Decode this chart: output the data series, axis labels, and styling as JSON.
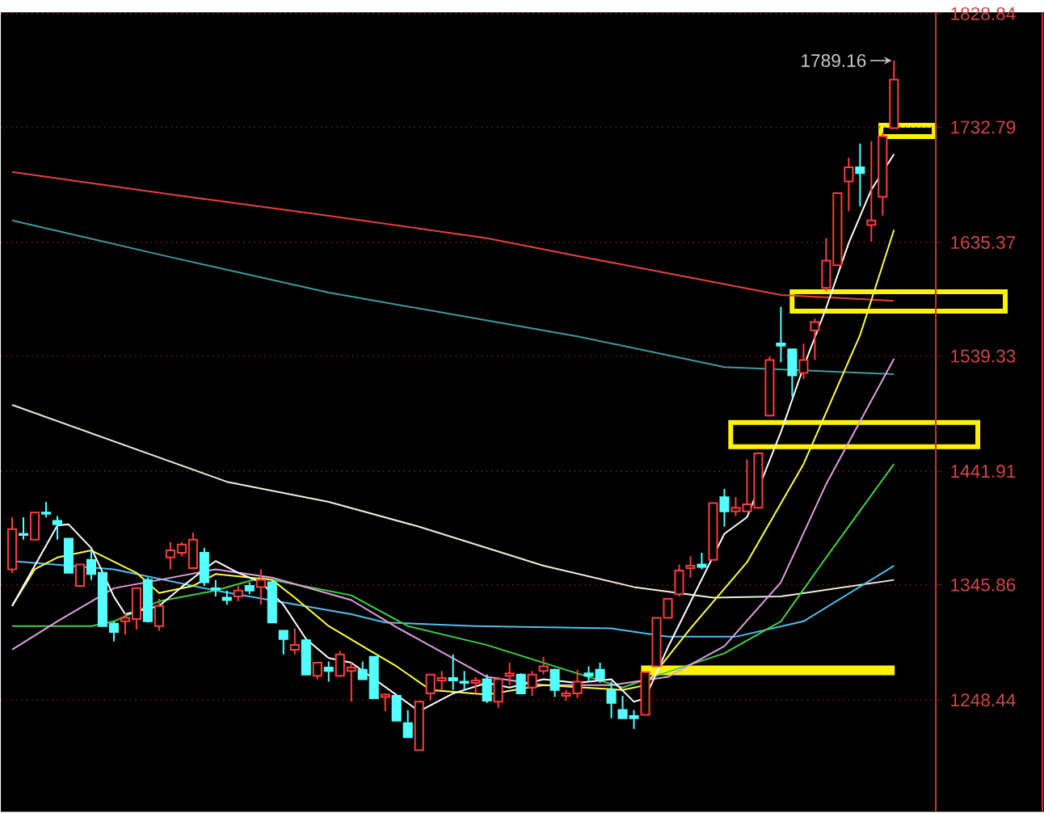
{
  "chart_data": {
    "type": "candlestick",
    "categories": [
      null,
      null,
      null,
      null,
      null,
      null,
      null,
      null,
      null,
      null,
      null,
      null,
      null,
      null,
      null,
      null,
      null,
      null,
      null,
      null,
      null,
      null,
      null,
      null,
      null,
      null,
      null,
      null,
      null,
      null,
      null,
      null,
      null,
      null,
      null,
      null,
      null,
      null,
      null,
      null,
      null,
      null,
      null,
      null,
      null,
      null,
      null,
      null,
      null,
      null,
      null,
      null,
      null,
      null,
      null,
      null,
      null,
      null,
      null,
      null,
      null,
      null,
      null,
      null,
      null,
      null,
      null,
      null,
      null,
      null,
      null,
      null,
      null,
      null,
      null,
      null,
      null,
      null,
      null
    ],
    "ohlc": [
      [
        1359,
        1403,
        1356,
        1393
      ],
      [
        1389,
        1403,
        1384,
        1388
      ],
      [
        1384,
        1407,
        1384,
        1407
      ],
      [
        1407,
        1416,
        1403,
        1406
      ],
      [
        1400,
        1404,
        1384,
        1397
      ],
      [
        1385,
        1385,
        1356,
        1356
      ],
      [
        1345,
        1363,
        1345,
        1363
      ],
      [
        1367,
        1375,
        1350,
        1355
      ],
      [
        1356,
        1356,
        1311,
        1311
      ],
      [
        1313,
        1315,
        1298,
        1306
      ],
      [
        1315,
        1322,
        1304,
        1318
      ],
      [
        1317,
        1343,
        1308,
        1343
      ],
      [
        1350,
        1352,
        1314,
        1315
      ],
      [
        1311,
        1334,
        1307,
        1328
      ],
      [
        1369,
        1382,
        1359,
        1375
      ],
      [
        1373,
        1382,
        1370,
        1380
      ],
      [
        1360,
        1390,
        1359,
        1384
      ],
      [
        1373,
        1377,
        1345,
        1348
      ],
      [
        1343,
        1350,
        1336,
        1342
      ],
      [
        1335,
        1341,
        1329,
        1333
      ],
      [
        1336,
        1345,
        1332,
        1341
      ],
      [
        1345,
        1348,
        1338,
        1341
      ],
      [
        1344,
        1359,
        1329,
        1350
      ],
      [
        1348,
        1350,
        1314,
        1314
      ],
      [
        1307,
        1307,
        1287,
        1300
      ],
      [
        1291,
        1309,
        1287,
        1295
      ],
      [
        1299,
        1299,
        1270,
        1270
      ],
      [
        1269,
        1280,
        1266,
        1280
      ],
      [
        1276,
        1281,
        1264,
        1273
      ],
      [
        1269,
        1290,
        1268,
        1287
      ],
      [
        1273,
        1280,
        1247,
        1276
      ],
      [
        1274,
        1281,
        1266,
        1266
      ],
      [
        1285,
        1285,
        1250,
        1250
      ],
      [
        1251,
        1254,
        1239,
        1253
      ],
      [
        1252,
        1252,
        1231,
        1231
      ],
      [
        1229,
        1240,
        1217,
        1217
      ],
      [
        1206,
        1247,
        1206,
        1247
      ],
      [
        1254,
        1270,
        1248,
        1270
      ],
      [
        1265,
        1273,
        1257,
        1267
      ],
      [
        1267,
        1287,
        1257,
        1265
      ],
      [
        1264,
        1273,
        1257,
        1263
      ],
      [
        1263,
        1268,
        1254,
        1265
      ],
      [
        1266,
        1270,
        1246,
        1248
      ],
      [
        1247,
        1268,
        1242,
        1266
      ],
      [
        1269,
        1280,
        1261,
        1271
      ],
      [
        1270,
        1271,
        1254,
        1254
      ],
      [
        1259,
        1273,
        1252,
        1270
      ],
      [
        1273,
        1285,
        1270,
        1277
      ],
      [
        1274,
        1275,
        1251,
        1257
      ],
      [
        1252,
        1257,
        1248,
        1254
      ],
      [
        1254,
        1274,
        1250,
        1264
      ],
      [
        1271,
        1277,
        1264,
        1269
      ],
      [
        1274,
        1280,
        1263,
        1266
      ],
      [
        1257,
        1264,
        1233,
        1246
      ],
      [
        1240,
        1252,
        1233,
        1233
      ],
      [
        1235,
        1240,
        1224,
        1233
      ],
      [
        1236,
        1272,
        1236,
        1272
      ],
      [
        1277,
        1318,
        1277,
        1318
      ],
      [
        1318,
        1334,
        1318,
        1334
      ],
      [
        1338,
        1363,
        1336,
        1358
      ],
      [
        1360,
        1370,
        1352,
        1362
      ],
      [
        1363,
        1373,
        1359,
        1361
      ],
      [
        1367,
        1415,
        1367,
        1415
      ],
      [
        1420,
        1427,
        1395,
        1408
      ],
      [
        1408,
        1420,
        1404,
        1411
      ],
      [
        1408,
        1452,
        1408,
        1414
      ],
      [
        1411,
        1457,
        1411,
        1457
      ],
      [
        1489,
        1539,
        1489,
        1536
      ],
      [
        1550,
        1581,
        1534,
        1548
      ],
      [
        1545,
        1545,
        1505,
        1523
      ],
      [
        1525,
        1550,
        1520,
        1536
      ],
      [
        1561,
        1571,
        1536,
        1568
      ],
      [
        1597,
        1639,
        1594,
        1620
      ],
      [
        1616,
        1677,
        1616,
        1677
      ],
      [
        1687,
        1707,
        1662,
        1699
      ],
      [
        1699,
        1719,
        1666,
        1694
      ],
      [
        1650,
        1721,
        1636,
        1654
      ],
      [
        1674,
        1728,
        1658,
        1725
      ],
      [
        1732,
        1789.16,
        1732,
        1773
      ]
    ],
    "colors": [
      "#ff3c3c",
      "#54ffff",
      "#ff3c3c",
      "#54ffff",
      "#54ffff",
      "#54ffff",
      "#ff3c3c",
      "#54ffff",
      "#54ffff",
      "#54ffff",
      "#ff3c3c",
      "#ff3c3c",
      "#54ffff",
      "#ff3c3c",
      "#ff3c3c",
      "#ff3c3c",
      "#ff3c3c",
      "#54ffff",
      "#54ffff",
      "#54ffff",
      "#ff3c3c",
      "#54ffff",
      "#ff3c3c",
      "#54ffff",
      "#54ffff",
      "#ff3c3c",
      "#54ffff",
      "#ff3c3c",
      "#54ffff",
      "#ff3c3c",
      "#ff3c3c",
      "#54ffff",
      "#54ffff",
      "#ff3c3c",
      "#54ffff",
      "#54ffff",
      "#ff3c3c",
      "#ff3c3c",
      "#ff3c3c",
      "#54ffff",
      "#54ffff",
      "#ff3c3c",
      "#54ffff",
      "#ff3c3c",
      "#ff3c3c",
      "#54ffff",
      "#ff3c3c",
      "#ff3c3c",
      "#54ffff",
      "#ff3c3c",
      "#ff3c3c",
      "#54ffff",
      "#54ffff",
      "#54ffff",
      "#54ffff",
      "#54ffff",
      "#ff3c3c",
      "#ff3c3c",
      "#ff3c3c",
      "#ff3c3c",
      "#ff3c3c",
      "#54ffff",
      "#ff3c3c",
      "#54ffff",
      "#ff3c3c",
      "#ff3c3c",
      "#ff3c3c",
      "#ff3c3c",
      "#54ffff",
      "#54ffff",
      "#ff3c3c",
      "#ff3c3c",
      "#ff3c3c",
      "#ff3c3c",
      "#ff3c3c",
      "#54ffff",
      "#ff3c3c",
      "#ff3c3c",
      "#ff3c3c"
    ],
    "series": [
      {
        "type": "line",
        "color": "#e84040",
        "values": [
          1695,
          null,
          null,
          null,
          null,
          null,
          null,
          null,
          null,
          null,
          null,
          null,
          null,
          null,
          1676,
          null,
          null,
          null,
          null,
          null,
          null,
          null,
          null,
          null,
          null,
          null,
          null,
          null,
          1658,
          null,
          null,
          null,
          null,
          null,
          null,
          null,
          null,
          null,
          null,
          null,
          null,
          null,
          1639,
          null,
          null,
          null,
          null,
          null,
          null,
          null,
          1624,
          null,
          null,
          null,
          null,
          null,
          1613,
          null,
          null,
          null,
          null,
          null,
          null,
          null,
          null,
          null,
          null,
          null,
          1591,
          null,
          null,
          null,
          null,
          null,
          null,
          null,
          null,
          null,
          1586
        ]
      },
      {
        "type": "line",
        "color": "#3f9aa0",
        "values": [
          1654,
          null,
          null,
          null,
          null,
          null,
          null,
          null,
          null,
          null,
          null,
          null,
          null,
          null,
          1623,
          null,
          null,
          null,
          null,
          null,
          null,
          null,
          null,
          null,
          null,
          null,
          null,
          null,
          1593,
          null,
          null,
          null,
          null,
          null,
          null,
          null,
          null,
          null,
          null,
          null,
          null,
          null,
          null,
          null,
          null,
          null,
          null,
          null,
          null,
          null,
          1556,
          null,
          null,
          null,
          null,
          null,
          null,
          null,
          null,
          null,
          null,
          null,
          null,
          1530,
          null,
          null,
          null,
          null,
          null,
          null,
          null,
          null,
          null,
          null,
          null,
          null,
          null,
          null,
          1524
        ]
      },
      {
        "type": "line",
        "color": "#f0f0d8",
        "values": [
          1498,
          null,
          null,
          null,
          null,
          null,
          null,
          null,
          null,
          null,
          null,
          null,
          null,
          null,
          null,
          null,
          null,
          null,
          null,
          1433,
          null,
          null,
          null,
          null,
          null,
          null,
          null,
          null,
          1416,
          null,
          null,
          null,
          null,
          null,
          null,
          null,
          1395,
          null,
          null,
          null,
          null,
          null,
          null,
          null,
          null,
          null,
          null,
          1362,
          null,
          null,
          null,
          null,
          null,
          null,
          null,
          1344,
          null,
          null,
          null,
          null,
          null,
          null,
          1335,
          null,
          null,
          null,
          null,
          null,
          1336,
          null,
          null,
          null,
          null,
          null,
          null,
          null,
          null,
          null,
          1350
        ]
      },
      {
        "type": "line",
        "color": "#50c0f0",
        "values": [
          1366,
          null,
          null,
          null,
          null,
          null,
          null,
          null,
          null,
          1359,
          null,
          null,
          null,
          null,
          null,
          null,
          null,
          null,
          1341,
          null,
          null,
          null,
          null,
          null,
          null,
          null,
          null,
          null,
          null,
          null,
          1321,
          null,
          null,
          1314,
          null,
          null,
          null,
          null,
          null,
          null,
          null,
          1311,
          null,
          null,
          null,
          null,
          null,
          null,
          null,
          null,
          null,
          null,
          null,
          1309,
          null,
          null,
          null,
          null,
          1302,
          null,
          null,
          null,
          null,
          null,
          1302,
          null,
          null,
          null,
          null,
          null,
          1315,
          null,
          null,
          null,
          null,
          null,
          null,
          null,
          1362
        ]
      },
      {
        "type": "line",
        "color": "#40d040",
        "values": [
          1311,
          null,
          null,
          null,
          null,
          null,
          null,
          1311,
          null,
          1315,
          null,
          null,
          null,
          1332,
          null,
          null,
          null,
          null,
          1341,
          null,
          null,
          null,
          1352,
          null,
          null,
          null,
          null,
          null,
          null,
          null,
          1337,
          null,
          null,
          null,
          null,
          1311,
          null,
          null,
          null,
          null,
          null,
          null,
          1295,
          null,
          null,
          null,
          null,
          null,
          null,
          1274,
          null,
          null,
          null,
          null,
          1259,
          null,
          null,
          1269,
          null,
          null,
          null,
          null,
          null,
          1288,
          null,
          null,
          null,
          null,
          1315,
          null,
          null,
          null,
          1369,
          null,
          null,
          null,
          null,
          null,
          1448
        ]
      },
      {
        "type": "line",
        "color": "#e0a0e0",
        "values": [
          1291,
          null,
          null,
          null,
          1315,
          null,
          null,
          null,
          null,
          1343,
          null,
          null,
          null,
          1350,
          null,
          null,
          null,
          null,
          1359,
          null,
          null,
          null,
          null,
          1352,
          null,
          null,
          null,
          null,
          null,
          null,
          1333,
          null,
          null,
          null,
          1310,
          null,
          null,
          null,
          null,
          null,
          null,
          null,
          1268,
          null,
          null,
          null,
          null,
          1261,
          null,
          null,
          null,
          null,
          null,
          1261,
          null,
          null,
          null,
          null,
          1268,
          null,
          null,
          null,
          null,
          1294,
          null,
          null,
          null,
          null,
          1348,
          null,
          null,
          null,
          1431,
          null,
          null,
          null,
          null,
          null,
          1537
        ]
      },
      {
        "type": "line",
        "color": "#ffff40",
        "values": [
          1328,
          null,
          1359,
          null,
          1369,
          null,
          null,
          1375,
          null,
          null,
          null,
          1356,
          null,
          1339,
          null,
          null,
          1345,
          null,
          1355,
          null,
          null,
          null,
          null,
          1350,
          null,
          1335,
          null,
          null,
          1311,
          null,
          null,
          1294,
          null,
          null,
          1277,
          null,
          null,
          1257,
          null,
          null,
          null,
          null,
          1253,
          null,
          null,
          null,
          null,
          1261,
          null,
          null,
          null,
          null,
          null,
          null,
          1257,
          null,
          1261,
          null,
          null,
          null,
          1309,
          null,
          null,
          null,
          null,
          1365,
          null,
          null,
          null,
          null,
          1448,
          null,
          null,
          null,
          null,
          1557,
          null,
          null,
          1646
        ]
      },
      {
        "type": "line",
        "color": "#ffffff",
        "values": [
          1328,
          null,
          null,
          null,
          1396,
          1397,
          null,
          1377,
          null,
          1336,
          1321,
          null,
          null,
          1328,
          null,
          1344,
          null,
          1359,
          1366,
          null,
          1356,
          null,
          1348,
          null,
          1329,
          null,
          1300,
          null,
          1284,
          null,
          1280,
          null,
          null,
          null,
          null,
          null,
          1239,
          null,
          null,
          1254,
          null,
          null,
          1263,
          null,
          1259,
          null,
          null,
          1266,
          null,
          null,
          1263,
          null,
          null,
          1266,
          null,
          1247,
          1250,
          null,
          1293,
          null,
          null,
          null,
          null,
          1389,
          null,
          1403,
          null,
          null,
          1475,
          null,
          1530,
          null,
          1580,
          null,
          1635,
          null,
          1680,
          null,
          1710
        ]
      }
    ],
    "ylim": [
      1154,
      1830
    ],
    "yticks": [
      1248.44,
      1345.86,
      1441.91,
      1539.33,
      1635.37,
      1732.79,
      1828.84
    ],
    "grid": "y",
    "tick_labels": "y",
    "annotations": [
      "1789.16"
    ]
  }
}
